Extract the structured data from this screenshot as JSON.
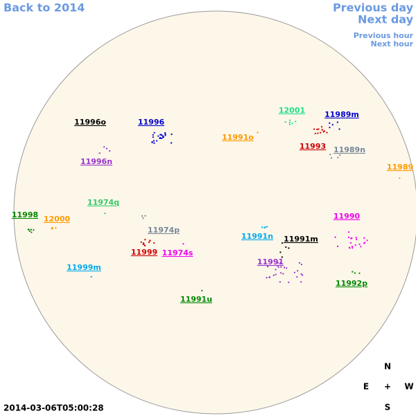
{
  "nav": {
    "back": "Back to 2014",
    "previous_day": "Previous day",
    "next_day": "Next day",
    "previous_hour": "Previous hour",
    "next_hour": "Next hour"
  },
  "timestamp": "2014-03-06T05:00:28",
  "compass": {
    "north": "N",
    "east": "E",
    "center": "+",
    "west": "W",
    "south": "S"
  },
  "regions": [
    {
      "label": "11996o",
      "color": "#000000"
    },
    {
      "label": "11996",
      "color": "#0000cc"
    },
    {
      "label": "11996n",
      "color": "#9933cc"
    },
    {
      "label": "11991o",
      "color": "#ff9900"
    },
    {
      "label": "12001",
      "color": "#22dd88"
    },
    {
      "label": "11989m",
      "color": "#0000cc"
    },
    {
      "label": "11993",
      "color": "#cc0000"
    },
    {
      "label": "11989n",
      "color": "#778899"
    },
    {
      "label": "11989",
      "color": "#ff9900"
    },
    {
      "label": "11974q",
      "color": "#33cc66"
    },
    {
      "label": "11998",
      "color": "#008800"
    },
    {
      "label": "12000",
      "color": "#ff9900"
    },
    {
      "label": "11974p",
      "color": "#778899"
    },
    {
      "label": "11991n",
      "color": "#00aaee"
    },
    {
      "label": "11991m",
      "color": "#000000"
    },
    {
      "label": "11990",
      "color": "#ee00ee"
    },
    {
      "label": "11999",
      "color": "#cc0000"
    },
    {
      "label": "11974s",
      "color": "#ee00ee"
    },
    {
      "label": "11999m",
      "color": "#00aaee"
    },
    {
      "label": "11991",
      "color": "#9933cc"
    },
    {
      "label": "11992p",
      "color": "#008800"
    },
    {
      "label": "11991u",
      "color": "#008800"
    }
  ]
}
